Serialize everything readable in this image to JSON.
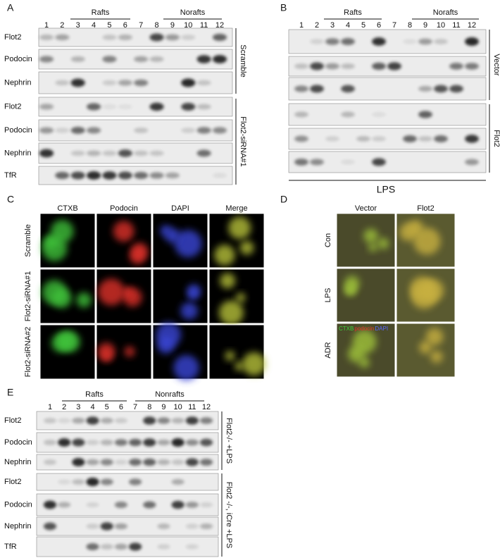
{
  "panel_a": {
    "label": "A",
    "groups": [
      "Rafts",
      "Norafts"
    ],
    "lanes": [
      1,
      2,
      3,
      4,
      5,
      6,
      7,
      8,
      9,
      10,
      11,
      12
    ],
    "rows": [
      "Flot2",
      "Podocin",
      "Nephrin",
      "Flot2",
      "Podocin",
      "Nephrin",
      "TfR"
    ],
    "conditions": [
      "Scramble",
      "Flot2-siRNA#1"
    ]
  },
  "panel_b": {
    "label": "B",
    "groups": [
      "Rafts",
      "Norafts"
    ],
    "lanes": [
      1,
      2,
      3,
      4,
      5,
      6,
      7,
      8,
      9,
      10,
      11,
      12
    ],
    "conditions": [
      "Vector",
      "Flot2"
    ],
    "treatment": "LPS"
  },
  "panel_c": {
    "label": "C",
    "columns": [
      "CTXB",
      "Podocin",
      "DAPI",
      "Merge"
    ],
    "rows": [
      "Scramble",
      "Flot2-siRNA#1",
      "Flot2-siRNA#2"
    ]
  },
  "panel_d": {
    "label": "D",
    "columns": [
      "Vector",
      "Flot2"
    ],
    "rows": [
      "Con",
      "LPS",
      "ADR"
    ],
    "stain_legend": [
      "CTXB",
      "podocin",
      "DAPI"
    ]
  },
  "panel_e": {
    "label": "E",
    "groups": [
      "Rafts",
      "Nonrafts"
    ],
    "lanes": [
      1,
      2,
      3,
      4,
      5,
      6,
      7,
      8,
      9,
      10,
      11,
      12
    ],
    "rows": [
      "Flot2",
      "Podocin",
      "Nephrin",
      "Flot2",
      "Podocin",
      "Nephrin",
      "TfR"
    ],
    "conditions": [
      "Flot2-/- +LPS",
      "Flot2 -/-, iCre +LPS"
    ]
  }
}
